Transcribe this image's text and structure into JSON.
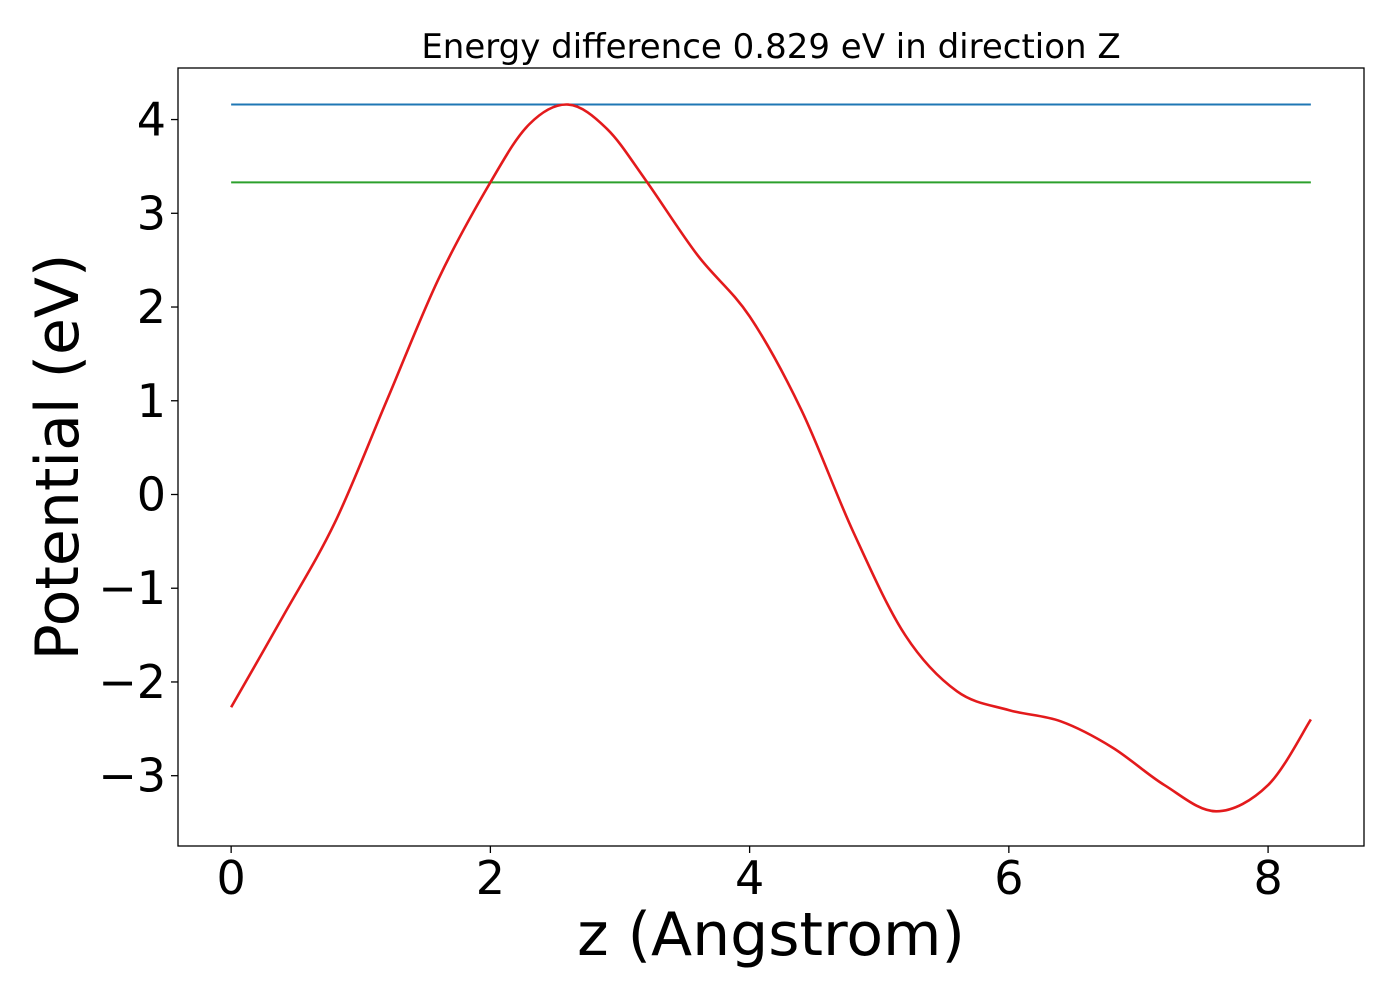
{
  "chart_data": {
    "type": "line",
    "title": "Energy difference 0.829 eV in direction Z",
    "xlabel": "z (Angstrom)",
    "ylabel": "Potential (eV)",
    "xlim": [
      -0.41,
      8.74
    ],
    "ylim": [
      -3.75,
      4.55
    ],
    "x_ticks": [
      0,
      2,
      4,
      6,
      8
    ],
    "x_tick_labels": [
      "0",
      "2",
      "4",
      "6",
      "8"
    ],
    "y_ticks": [
      -3,
      -2,
      -1,
      0,
      1,
      2,
      3,
      4
    ],
    "y_tick_labels": [
      "−3",
      "−2",
      "−1",
      "0",
      "1",
      "2",
      "3",
      "4"
    ],
    "grid": false,
    "legend": "none",
    "series": [
      {
        "color": "#1f77b4",
        "x": [
          0,
          8.33
        ],
        "y": [
          4.16,
          4.16
        ]
      },
      {
        "color": "#2ca02c",
        "x": [
          0,
          8.33
        ],
        "y": [
          3.33,
          3.33
        ]
      },
      {
        "color": "#e31a1c",
        "x": [
          0,
          0.4,
          0.8,
          1.2,
          1.6,
          2.0,
          2.3,
          2.6,
          2.9,
          3.2,
          3.6,
          4.0,
          4.4,
          4.8,
          5.2,
          5.6,
          6.0,
          6.4,
          6.8,
          7.2,
          7.6,
          8.0,
          8.33
        ],
        "y": [
          -2.27,
          -1.3,
          -0.3,
          1.0,
          2.3,
          3.33,
          3.95,
          4.16,
          3.9,
          3.35,
          2.55,
          1.9,
          0.9,
          -0.4,
          -1.5,
          -2.1,
          -2.3,
          -2.42,
          -2.7,
          -3.1,
          -3.38,
          -3.1,
          -2.4
        ]
      }
    ]
  }
}
